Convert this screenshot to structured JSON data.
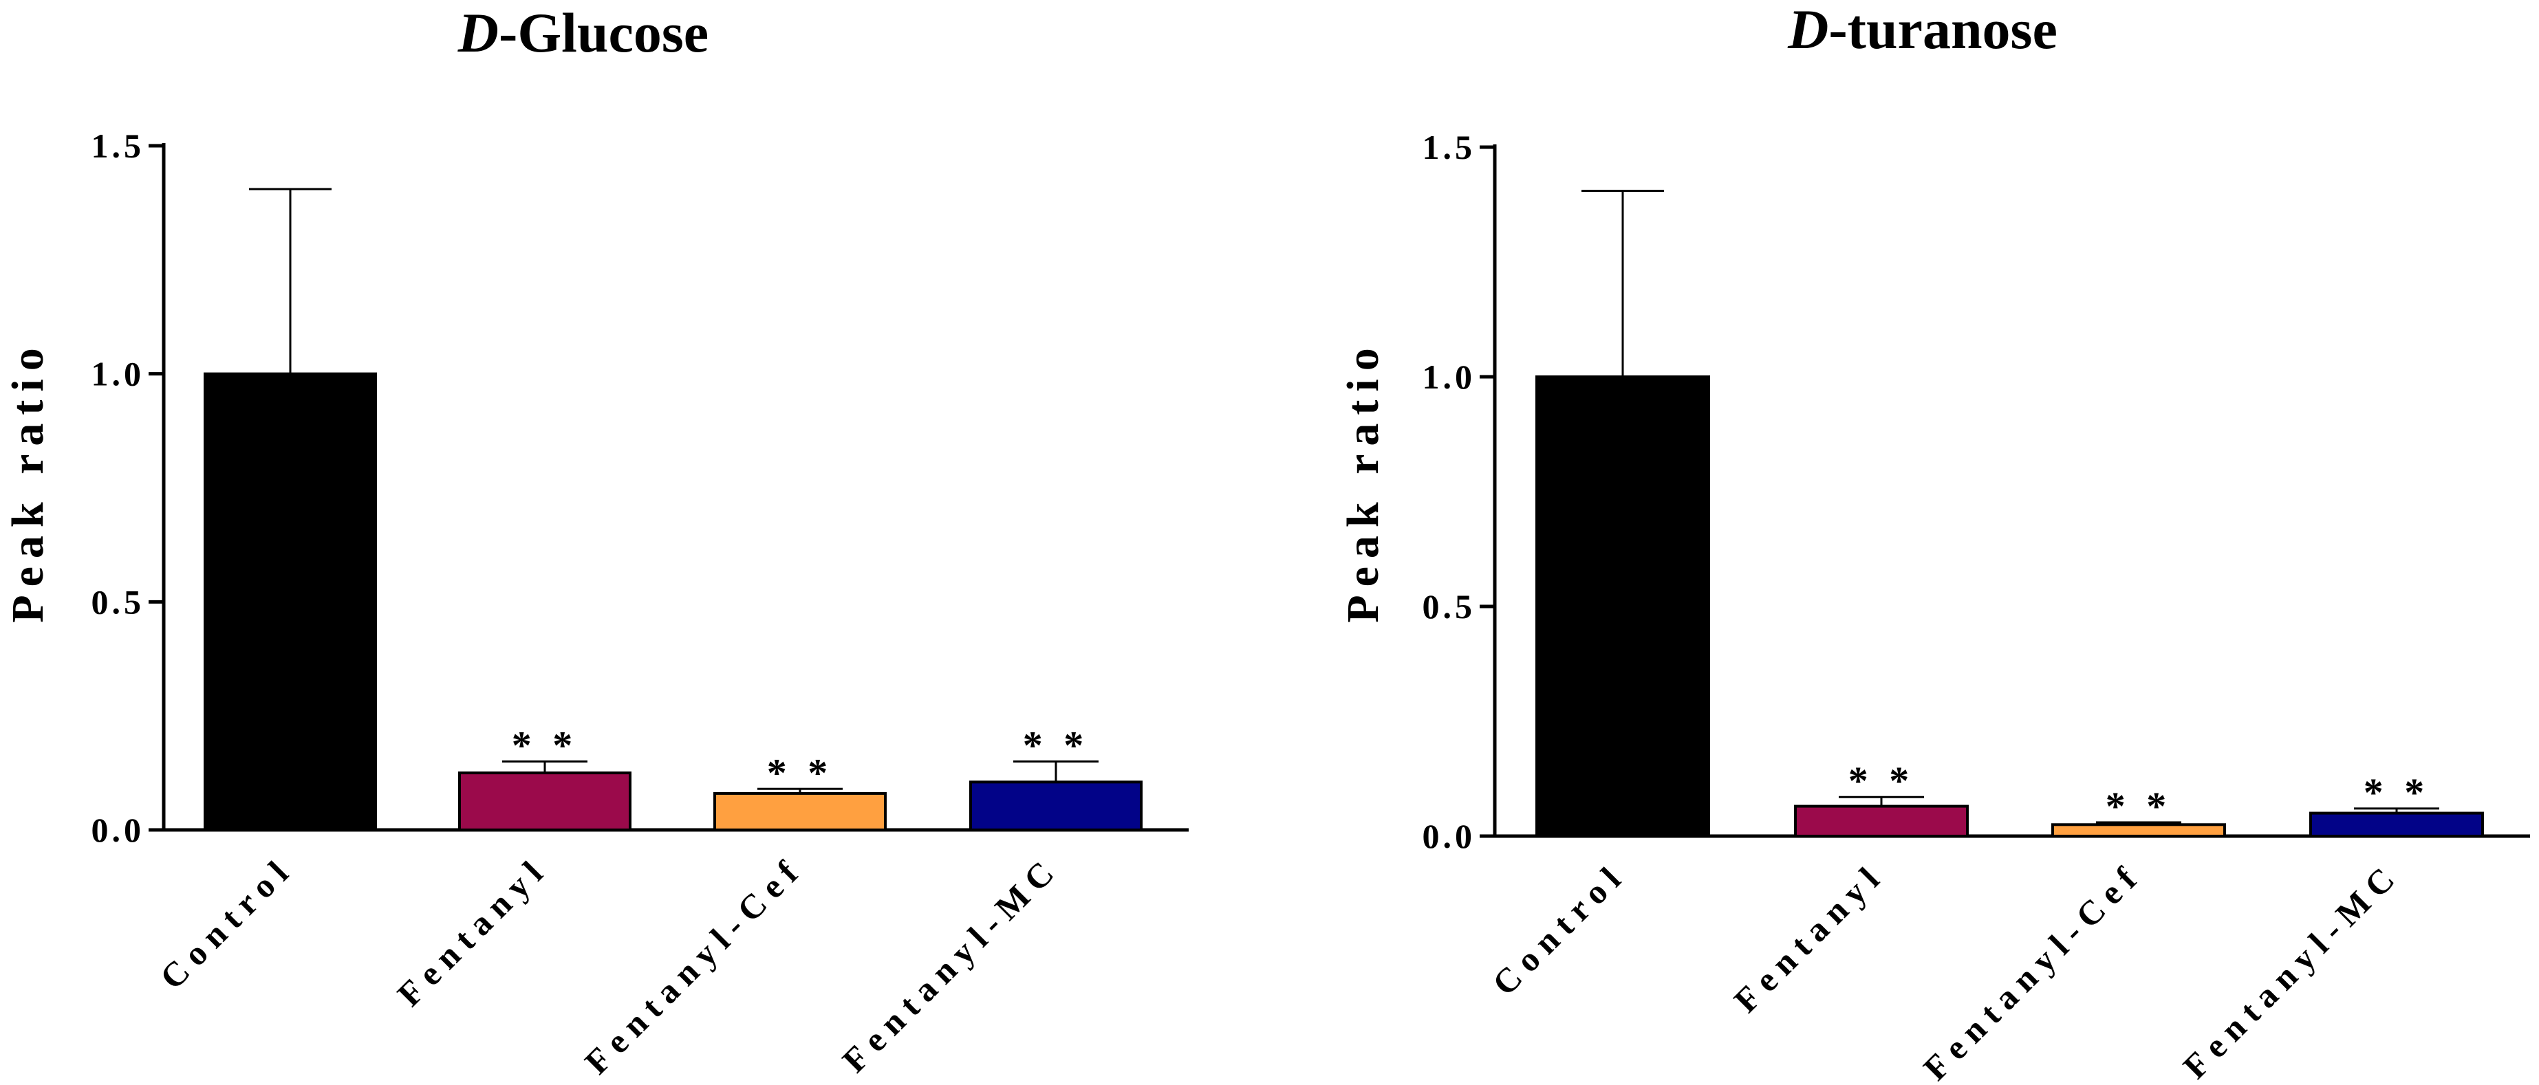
{
  "chart_data": [
    {
      "type": "bar",
      "title_italic": "D",
      "title_rest": "-Glucose",
      "ylabel": "Peak ratio",
      "xlabel": "",
      "ylim": [
        0,
        1.5
      ],
      "yticks": [
        "0.0",
        "0.5",
        "1.0",
        "1.5"
      ],
      "categories": [
        "Control",
        "Fentanyl",
        "Fentanyl-Cef",
        "Fentanyl-MC"
      ],
      "values": [
        1.0,
        0.125,
        0.08,
        0.105
      ],
      "error_upper": [
        0.405,
        0.025,
        0.01,
        0.045
      ],
      "colors": [
        "#000000",
        "#9B0A4B",
        "#FFA040",
        "#020388"
      ],
      "annotations": [
        "",
        "* *",
        "* *",
        "* *"
      ]
    },
    {
      "type": "bar",
      "title_italic": "D",
      "title_rest": "-turanose",
      "ylabel": "Peak ratio",
      "xlabel": "",
      "ylim": [
        0,
        1.5
      ],
      "yticks": [
        "0.0",
        "0.5",
        "1.0",
        "1.5"
      ],
      "categories": [
        "Control",
        "Fentanyl",
        "Fentanyl-Cef",
        "Fentanyl-MC"
      ],
      "values": [
        1.0,
        0.065,
        0.025,
        0.05
      ],
      "error_upper": [
        0.405,
        0.02,
        0.005,
        0.01
      ],
      "colors": [
        "#000000",
        "#9B0A4B",
        "#FFA040",
        "#020388"
      ],
      "annotations": [
        "",
        "* *",
        "* *",
        "* *"
      ]
    }
  ]
}
